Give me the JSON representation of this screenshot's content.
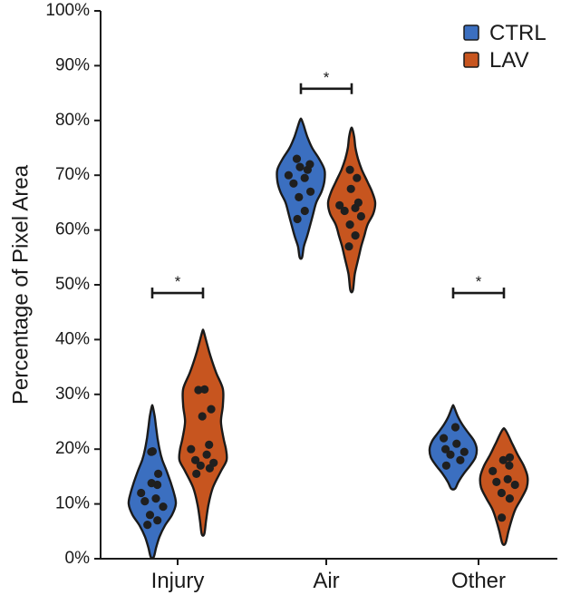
{
  "chart_data": {
    "type": "violin",
    "title": "",
    "xlabel": "",
    "ylabel": "Percentage of Pixel Area",
    "ylim": [
      0,
      100
    ],
    "yticks": [
      "0%",
      "10%",
      "20%",
      "30%",
      "40%",
      "50%",
      "60%",
      "70%",
      "80%",
      "90%",
      "100%"
    ],
    "categories": [
      "Injury",
      "Air",
      "Other"
    ],
    "legend_position": "top-right",
    "series": [
      {
        "name": "CTRL",
        "color": "#3b6fc0",
        "groups": [
          {
            "category": "Injury",
            "range": [
              0.3,
              27.8
            ],
            "density": [
              [
                0.3,
                0.3
              ],
              [
                2,
                0.8
              ],
              [
                4,
                1.5
              ],
              [
                6,
                2.6
              ],
              [
                8,
                4.1
              ],
              [
                10,
                4.9
              ],
              [
                12,
                4.5
              ],
              [
                14,
                3.8
              ],
              [
                16,
                3.0
              ],
              [
                18,
                2.1
              ],
              [
                20,
                1.5
              ],
              [
                22,
                1.1
              ],
              [
                24,
                0.8
              ],
              [
                26,
                0.5
              ],
              [
                27.8,
                0.1
              ]
            ],
            "points": [
              6.2,
              7.0,
              8.0,
              9.5,
              10.5,
              11.0,
              12.0,
              13.5,
              13.8,
              15.5,
              19.5,
              19.6
            ]
          },
          {
            "category": "Air",
            "range": [
              55.0,
              80.2
            ],
            "density": [
              [
                55,
                0.2
              ],
              [
                57,
                0.5
              ],
              [
                59,
                1.1
              ],
              [
                61,
                1.6
              ],
              [
                63,
                2.1
              ],
              [
                65,
                2.6
              ],
              [
                67,
                3.5
              ],
              [
                69,
                4.0
              ],
              [
                71,
                4.0
              ],
              [
                73,
                3.1
              ],
              [
                75,
                1.9
              ],
              [
                77,
                1.1
              ],
              [
                79,
                0.5
              ],
              [
                80.2,
                0.1
              ]
            ],
            "points": [
              62.0,
              63.5,
              66.0,
              67.0,
              68.5,
              69.5,
              70.0,
              71.0,
              71.5,
              72.0,
              73.0
            ]
          },
          {
            "category": "Other",
            "range": [
              12.8,
              27.8
            ],
            "density": [
              [
                12.8,
                0.3
              ],
              [
                14,
                0.8
              ],
              [
                15.5,
                1.6
              ],
              [
                17,
                2.6
              ],
              [
                18.5,
                3.4
              ],
              [
                20,
                3.6
              ],
              [
                21.5,
                3.2
              ],
              [
                23,
                2.3
              ],
              [
                24.5,
                1.4
              ],
              [
                26,
                0.7
              ],
              [
                27.8,
                0.1
              ]
            ],
            "points": [
              17.0,
              18.0,
              19.0,
              19.5,
              20.0,
              21.0,
              22.0,
              24.0
            ]
          }
        ]
      },
      {
        "name": "LAV",
        "color": "#c7551f",
        "groups": [
          {
            "category": "Injury",
            "range": [
              4.5,
              41.5
            ],
            "density": [
              [
                4.5,
                0.2
              ],
              [
                7,
                0.5
              ],
              [
                10,
                0.9
              ],
              [
                13,
                1.6
              ],
              [
                16,
                2.9
              ],
              [
                18,
                3.8
              ],
              [
                20,
                3.7
              ],
              [
                22,
                3.3
              ],
              [
                25,
                2.9
              ],
              [
                28,
                3.2
              ],
              [
                31,
                3.2
              ],
              [
                34,
                2.1
              ],
              [
                37,
                1.2
              ],
              [
                39,
                0.7
              ],
              [
                41.5,
                0.1
              ]
            ],
            "points": [
              15.5,
              16.5,
              17.0,
              17.5,
              18.0,
              19.0,
              20.0,
              20.8,
              26.0,
              27.3,
              30.8,
              30.9
            ]
          },
          {
            "category": "Air",
            "range": [
              49.0,
              78.5
            ],
            "density": [
              [
                49,
                0.2
              ],
              [
                52,
                0.5
              ],
              [
                55,
                1.1
              ],
              [
                57,
                1.5
              ],
              [
                59,
                2.0
              ],
              [
                61,
                2.5
              ],
              [
                63,
                3.4
              ],
              [
                65,
                3.7
              ],
              [
                67,
                3.2
              ],
              [
                69,
                2.4
              ],
              [
                71,
                1.6
              ],
              [
                73,
                1.0
              ],
              [
                75,
                0.6
              ],
              [
                77,
                0.4
              ],
              [
                78.5,
                0.1
              ]
            ],
            "points": [
              57.0,
              59.0,
              61.0,
              62.5,
              63.5,
              64.0,
              64.5,
              65.0,
              67.5,
              69.5,
              71.0
            ]
          },
          {
            "category": "Other",
            "range": [
              2.8,
              23.5
            ],
            "density": [
              [
                2.8,
                0.2
              ],
              [
                5,
                0.6
              ],
              [
                7,
                1.0
              ],
              [
                9,
                1.5
              ],
              [
                11,
                2.3
              ],
              [
                13,
                3.0
              ],
              [
                15,
                3.1
              ],
              [
                17,
                2.6
              ],
              [
                19,
                1.8
              ],
              [
                21,
                1.1
              ],
              [
                23.5,
                0.2
              ]
            ],
            "points": [
              7.5,
              11.0,
              12.0,
              13.5,
              14.0,
              14.5,
              16.0,
              17.0,
              18.0,
              18.5
            ]
          }
        ]
      }
    ],
    "significance": [
      {
        "category": "Injury",
        "label": "*",
        "y": 48.5
      },
      {
        "category": "Air",
        "label": "*",
        "y": 85.8
      },
      {
        "category": "Other",
        "label": "*",
        "y": 48.5
      }
    ]
  }
}
